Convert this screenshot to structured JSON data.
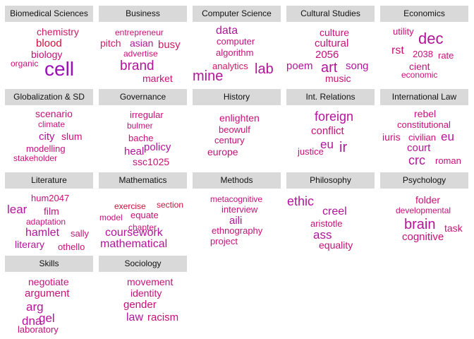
{
  "colors": {
    "header_bg": "#d9d9d9",
    "palette": [
      "#cc1a66",
      "#c8107a",
      "#b3149a",
      "#9a10b8",
      "#d0103c"
    ]
  },
  "panels": [
    {
      "title": "Biomedical Sciences",
      "words": [
        {
          "text": "chemistry",
          "size": 14,
          "color": 0
        },
        {
          "text": "blood",
          "size": 15,
          "color": 4
        },
        {
          "text": "biology",
          "size": 14,
          "color": 1
        },
        {
          "text": "organic",
          "size": 12,
          "color": 1
        },
        {
          "text": "cell",
          "size": 28,
          "color": 3
        }
      ]
    },
    {
      "title": "Business",
      "words": [
        {
          "text": "entrepreneur",
          "size": 12,
          "color": 1
        },
        {
          "text": "pitch",
          "size": 14,
          "color": 0
        },
        {
          "text": "asian",
          "size": 14,
          "color": 2
        },
        {
          "text": "busy",
          "size": 15,
          "color": 0
        },
        {
          "text": "advertise",
          "size": 12,
          "color": 1
        },
        {
          "text": "brand",
          "size": 19,
          "color": 2
        },
        {
          "text": "market",
          "size": 14,
          "color": 1
        }
      ]
    },
    {
      "title": "Computer Science",
      "words": [
        {
          "text": "data",
          "size": 16,
          "color": 2
        },
        {
          "text": "computer",
          "size": 13,
          "color": 1
        },
        {
          "text": "algorithm",
          "size": 13,
          "color": 1
        },
        {
          "text": "analytics",
          "size": 13,
          "color": 0
        },
        {
          "text": "lab",
          "size": 20,
          "color": 2
        },
        {
          "text": "mine",
          "size": 20,
          "color": 2
        }
      ]
    },
    {
      "title": "Cultural Studies",
      "words": [
        {
          "text": "culture",
          "size": 14,
          "color": 1
        },
        {
          "text": "cultural",
          "size": 15,
          "color": 1
        },
        {
          "text": "2056",
          "size": 15,
          "color": 1
        },
        {
          "text": "poem",
          "size": 15,
          "color": 2
        },
        {
          "text": "art",
          "size": 20,
          "color": 2
        },
        {
          "text": "song",
          "size": 15,
          "color": 2
        },
        {
          "text": "music",
          "size": 14,
          "color": 1
        }
      ]
    },
    {
      "title": "Economics",
      "words": [
        {
          "text": "utility",
          "size": 13,
          "color": 1
        },
        {
          "text": "dec",
          "size": 22,
          "color": 2
        },
        {
          "text": "rst",
          "size": 16,
          "color": 1
        },
        {
          "text": "2038",
          "size": 13,
          "color": 1
        },
        {
          "text": "rate",
          "size": 13,
          "color": 1
        },
        {
          "text": "cient",
          "size": 14,
          "color": 1
        },
        {
          "text": "economic",
          "size": 12,
          "color": 1
        }
      ]
    },
    {
      "title": "Globalization & SD",
      "words": [
        {
          "text": "scenario",
          "size": 14,
          "color": 1
        },
        {
          "text": "climate",
          "size": 12,
          "color": 1
        },
        {
          "text": "city",
          "size": 15,
          "color": 2
        },
        {
          "text": "slum",
          "size": 14,
          "color": 1
        },
        {
          "text": "modelling",
          "size": 13,
          "color": 1
        },
        {
          "text": "stakeholder",
          "size": 12,
          "color": 1
        }
      ]
    },
    {
      "title": "Governance",
      "words": [
        {
          "text": "irregular",
          "size": 13,
          "color": 1
        },
        {
          "text": "bulmer",
          "size": 12,
          "color": 1
        },
        {
          "text": "bache",
          "size": 13,
          "color": 1
        },
        {
          "text": "policy",
          "size": 15,
          "color": 2
        },
        {
          "text": "heal",
          "size": 15,
          "color": 2
        },
        {
          "text": "ssc1025",
          "size": 14,
          "color": 1
        }
      ]
    },
    {
      "title": "History",
      "words": [
        {
          "text": "enlighten",
          "size": 14,
          "color": 1
        },
        {
          "text": "beowulf",
          "size": 13,
          "color": 1
        },
        {
          "text": "century",
          "size": 13,
          "color": 1
        },
        {
          "text": "europe",
          "size": 14,
          "color": 1
        }
      ]
    },
    {
      "title": "Int. Relations",
      "words": [
        {
          "text": "foreign",
          "size": 18,
          "color": 2
        },
        {
          "text": "conflict",
          "size": 15,
          "color": 1
        },
        {
          "text": "eu",
          "size": 17,
          "color": 2
        },
        {
          "text": "ir",
          "size": 20,
          "color": 2
        },
        {
          "text": "justice",
          "size": 13,
          "color": 1
        }
      ]
    },
    {
      "title": "International Law",
      "words": [
        {
          "text": "rebel",
          "size": 14,
          "color": 1
        },
        {
          "text": "constitutional",
          "size": 13,
          "color": 1
        },
        {
          "text": "iuris",
          "size": 14,
          "color": 1
        },
        {
          "text": "civilian",
          "size": 13,
          "color": 1
        },
        {
          "text": "eu",
          "size": 17,
          "color": 2
        },
        {
          "text": "court",
          "size": 15,
          "color": 2
        },
        {
          "text": "crc",
          "size": 18,
          "color": 2
        },
        {
          "text": "roman",
          "size": 13,
          "color": 1
        }
      ]
    },
    {
      "title": "Literature",
      "words": [
        {
          "text": "hum2047",
          "size": 13,
          "color": 1
        },
        {
          "text": "lear",
          "size": 17,
          "color": 2
        },
        {
          "text": "film",
          "size": 14,
          "color": 1
        },
        {
          "text": "adaptation",
          "size": 12,
          "color": 1
        },
        {
          "text": "sally",
          "size": 13,
          "color": 1
        },
        {
          "text": "hamlet",
          "size": 16,
          "color": 2
        },
        {
          "text": "literary",
          "size": 14,
          "color": 2
        },
        {
          "text": "othello",
          "size": 13,
          "color": 1
        }
      ]
    },
    {
      "title": "Mathematics",
      "words": [
        {
          "text": "exercise",
          "size": 12,
          "color": 4
        },
        {
          "text": "section",
          "size": 12,
          "color": 4
        },
        {
          "text": "equate",
          "size": 13,
          "color": 1
        },
        {
          "text": "model",
          "size": 12,
          "color": 1
        },
        {
          "text": "chapter",
          "size": 12,
          "color": 1
        },
        {
          "text": "coursework",
          "size": 16,
          "color": 2
        },
        {
          "text": "mathematical",
          "size": 16,
          "color": 2
        }
      ]
    },
    {
      "title": "Methods",
      "words": [
        {
          "text": "metacognitive",
          "size": 12,
          "color": 1
        },
        {
          "text": "interview",
          "size": 13,
          "color": 1
        },
        {
          "text": "aili",
          "size": 15,
          "color": 2
        },
        {
          "text": "ethnography",
          "size": 13,
          "color": 1
        },
        {
          "text": "project",
          "size": 13,
          "color": 1
        }
      ]
    },
    {
      "title": "Philosophy",
      "words": [
        {
          "text": "ethic",
          "size": 18,
          "color": 2
        },
        {
          "text": "creel",
          "size": 16,
          "color": 2
        },
        {
          "text": "aristotle",
          "size": 13,
          "color": 1
        },
        {
          "text": "ass",
          "size": 17,
          "color": 2
        },
        {
          "text": "equality",
          "size": 14,
          "color": 1
        }
      ]
    },
    {
      "title": "Psychology",
      "words": [
        {
          "text": "folder",
          "size": 14,
          "color": 1
        },
        {
          "text": "developmental",
          "size": 12,
          "color": 1
        },
        {
          "text": "brain",
          "size": 20,
          "color": 2
        },
        {
          "text": "task",
          "size": 14,
          "color": 1
        },
        {
          "text": "cognitive",
          "size": 15,
          "color": 1
        }
      ]
    },
    {
      "title": "Skills",
      "words": [
        {
          "text": "negotiate",
          "size": 14,
          "color": 1
        },
        {
          "text": "argument",
          "size": 15,
          "color": 1
        },
        {
          "text": "arg",
          "size": 17,
          "color": 2
        },
        {
          "text": "gel",
          "size": 17,
          "color": 2
        },
        {
          "text": "dna",
          "size": 17,
          "color": 2
        },
        {
          "text": "laboratory",
          "size": 13,
          "color": 1
        }
      ]
    },
    {
      "title": "Sociology",
      "words": [
        {
          "text": "movement",
          "size": 14,
          "color": 1
        },
        {
          "text": "identity",
          "size": 14,
          "color": 1
        },
        {
          "text": "gender",
          "size": 15,
          "color": 1
        },
        {
          "text": "law",
          "size": 16,
          "color": 2
        },
        {
          "text": "racism",
          "size": 15,
          "color": 1
        }
      ]
    }
  ]
}
